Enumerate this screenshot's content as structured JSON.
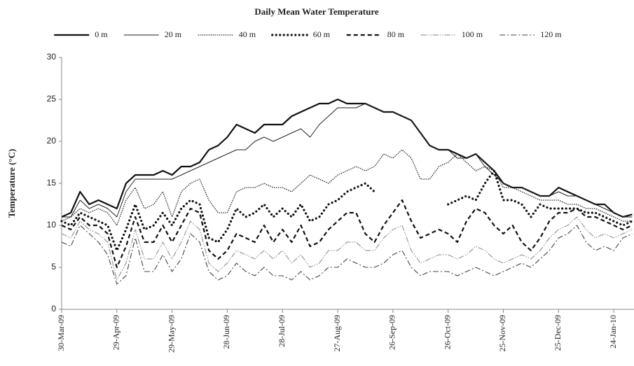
{
  "chart_data": {
    "type": "line",
    "title": "Daily Mean Water Temperature",
    "y_label": "Temperature (°C)",
    "x": [
      "2009-03-30",
      "2009-04-04",
      "2009-04-09",
      "2009-04-14",
      "2009-04-19",
      "2009-04-24",
      "2009-04-29",
      "2009-05-04",
      "2009-05-09",
      "2009-05-14",
      "2009-05-19",
      "2009-05-24",
      "2009-05-29",
      "2009-06-03",
      "2009-06-08",
      "2009-06-13",
      "2009-06-18",
      "2009-06-23",
      "2009-06-28",
      "2009-07-03",
      "2009-07-08",
      "2009-07-13",
      "2009-07-18",
      "2009-07-23",
      "2009-07-28",
      "2009-08-02",
      "2009-08-07",
      "2009-08-12",
      "2009-08-17",
      "2009-08-22",
      "2009-08-27",
      "2009-09-01",
      "2009-09-06",
      "2009-09-11",
      "2009-09-16",
      "2009-09-21",
      "2009-09-26",
      "2009-10-01",
      "2009-10-06",
      "2009-10-11",
      "2009-10-16",
      "2009-10-21",
      "2009-10-26",
      "2009-10-31",
      "2009-11-05",
      "2009-11-10",
      "2009-11-15",
      "2009-11-20",
      "2009-11-25",
      "2009-11-30",
      "2009-12-05",
      "2009-12-10",
      "2009-12-15",
      "2009-12-20",
      "2009-12-25",
      "2009-12-30",
      "2010-01-04",
      "2010-01-09",
      "2010-01-14",
      "2010-01-19",
      "2010-01-24",
      "2010-01-29",
      "2010-02-03"
    ],
    "xlim": [
      "2009-03-30",
      "2010-02-04"
    ],
    "xticks": [
      {
        "value": "2009-03-30",
        "label": "30-Mar-09"
      },
      {
        "value": "2009-04-29",
        "label": "29-Apr-09"
      },
      {
        "value": "2009-05-29",
        "label": "29-May-09"
      },
      {
        "value": "2009-06-28",
        "label": "28-Jun-09"
      },
      {
        "value": "2009-07-28",
        "label": "28-Jul-09"
      },
      {
        "value": "2009-08-27",
        "label": "27-Aug-09"
      },
      {
        "value": "2009-09-26",
        "label": "26-Sep-09"
      },
      {
        "value": "2009-10-26",
        "label": "26-Oct-09"
      },
      {
        "value": "2009-11-25",
        "label": "25-Nov-09"
      },
      {
        "value": "2009-12-25",
        "label": "25-Dec-09"
      },
      {
        "value": "2010-01-24",
        "label": "24-Jan-10"
      }
    ],
    "ylim": [
      0,
      30
    ],
    "yticks": [
      0,
      5,
      10,
      15,
      20,
      25,
      30
    ],
    "grid": false,
    "legend": "top",
    "series": [
      {
        "name": "0 m",
        "color": "#111111",
        "style": "thick",
        "values": [
          11,
          11.5,
          14,
          12.5,
          13,
          12.5,
          12,
          15,
          16,
          16,
          16,
          16.5,
          16,
          17,
          17,
          17.5,
          19,
          19.5,
          20.5,
          22,
          21.5,
          21,
          22,
          22,
          22,
          23,
          23.5,
          24,
          24.5,
          24.5,
          25,
          24.5,
          24.5,
          24.5,
          24,
          23.5,
          23.5,
          23,
          22.5,
          21,
          19.5,
          19,
          19,
          18.5,
          18,
          18.5,
          17.5,
          16.5,
          15,
          14.5,
          14.5,
          14,
          13.5,
          13.5,
          14.5,
          14,
          13.5,
          13,
          12.5,
          12.5,
          11.5,
          11,
          11.3
        ]
      },
      {
        "name": "20 m",
        "color": "#222222",
        "style": "thin",
        "values": [
          11,
          11,
          13,
          12,
          12.5,
          12,
          11,
          14,
          15.5,
          15.5,
          15.5,
          15.5,
          15.5,
          16,
          16.5,
          17,
          17.5,
          18,
          18.5,
          19,
          19,
          20,
          20.5,
          20,
          20.5,
          21,
          21.5,
          20.5,
          22,
          23,
          24,
          24,
          24,
          24.5,
          24,
          23.5,
          23.5,
          23,
          22.5,
          21,
          19.5,
          19,
          19,
          18,
          18,
          18.5,
          17,
          16,
          15,
          14.5,
          14.5,
          14,
          13.5,
          13.5,
          14,
          13.5,
          13.5,
          13,
          12.5,
          12,
          11.5,
          11,
          11
        ]
      },
      {
        "name": "40 m",
        "color": "#222222",
        "style": "dotted",
        "values": [
          10.5,
          11,
          12,
          11.5,
          12,
          11.5,
          10,
          13,
          14.5,
          12,
          12.5,
          14,
          11,
          14,
          15,
          15.5,
          13,
          11.5,
          11.5,
          14,
          14.5,
          14.5,
          15,
          14.5,
          14.5,
          14,
          15,
          16,
          15.5,
          15,
          16,
          16.5,
          17,
          16.5,
          17,
          18.5,
          18,
          19,
          18,
          15.5,
          15.5,
          17,
          17.5,
          18.5,
          17.5,
          16.5,
          17,
          16.5,
          14.5,
          14.5,
          14,
          13.5,
          13,
          13,
          13,
          12.5,
          12.5,
          12,
          12,
          11.5,
          11,
          10.5,
          10.5
        ]
      },
      {
        "name": "60 m",
        "color": "#111111",
        "style": "heavy-dotted",
        "values": [
          10.5,
          10,
          11.5,
          11,
          10.5,
          10,
          7,
          9.5,
          12.5,
          9.5,
          10,
          11.5,
          10,
          12,
          13,
          12.5,
          8.5,
          8,
          9.5,
          12,
          11,
          11.5,
          12.5,
          11,
          12,
          11,
          12.5,
          10.5,
          11,
          12.5,
          13,
          14,
          14.5,
          15,
          14,
          null,
          null,
          null,
          null,
          null,
          null,
          null,
          12.5,
          13,
          13.5,
          13,
          15,
          16.5,
          13,
          13,
          12.5,
          11,
          12.5,
          12,
          12,
          12,
          12,
          11.5,
          11.5,
          11,
          10.5,
          10,
          10.5
        ]
      },
      {
        "name": "80 m",
        "color": "#111111",
        "style": "dashed",
        "values": [
          10,
          9.5,
          11,
          10,
          10,
          9,
          5,
          7.5,
          11,
          8,
          8,
          10,
          8,
          10,
          12,
          11.5,
          7,
          6,
          7,
          9,
          8.5,
          8,
          10,
          8,
          9.5,
          8,
          10,
          7.5,
          8,
          9.5,
          10.5,
          11.5,
          11.5,
          9,
          8,
          10,
          11.5,
          13,
          10.5,
          8.5,
          9,
          9.5,
          9,
          8,
          10.5,
          12,
          11.5,
          10,
          9,
          10,
          8,
          7,
          8.5,
          10.5,
          11.5,
          11.5,
          12,
          11,
          11,
          10.5,
          10,
          9.5,
          10
        ]
      },
      {
        "name": "100 m",
        "color": "#999999",
        "style": "dash-dot-dot",
        "values": [
          9,
          8.5,
          10.5,
          9.5,
          9,
          8,
          3.5,
          5.5,
          9.5,
          6,
          6,
          8,
          6,
          8,
          10.5,
          9.5,
          5.5,
          4.5,
          5.5,
          7,
          6.5,
          6,
          7,
          6,
          7,
          5.5,
          6.5,
          5,
          5.5,
          7,
          7,
          8,
          8,
          7,
          7,
          8.5,
          9.5,
          10,
          7,
          5.5,
          6,
          6.5,
          6.5,
          6,
          6.5,
          7.5,
          7,
          6,
          5.5,
          6,
          6.5,
          6,
          7,
          8.5,
          9.5,
          10,
          11,
          9.5,
          8.5,
          9,
          8.5,
          9,
          9.5
        ]
      },
      {
        "name": "120 m",
        "color": "#444444",
        "style": "dash-dot",
        "values": [
          8,
          7.5,
          10,
          9,
          8,
          6.5,
          3,
          4,
          8.5,
          4.5,
          4.5,
          6.5,
          4.5,
          6,
          9,
          8,
          4.5,
          3.5,
          4,
          5.5,
          4.5,
          4,
          5,
          4,
          4,
          3.5,
          4.5,
          3.5,
          4,
          5,
          5,
          6,
          5.5,
          5,
          5,
          5.5,
          6.5,
          7,
          5,
          4,
          4.5,
          4.5,
          4.5,
          4,
          4.5,
          5,
          4.5,
          4,
          4.5,
          5,
          5.5,
          5,
          6,
          7,
          8.5,
          9,
          10,
          8,
          7,
          7.5,
          7,
          8.5,
          9
        ]
      }
    ]
  }
}
